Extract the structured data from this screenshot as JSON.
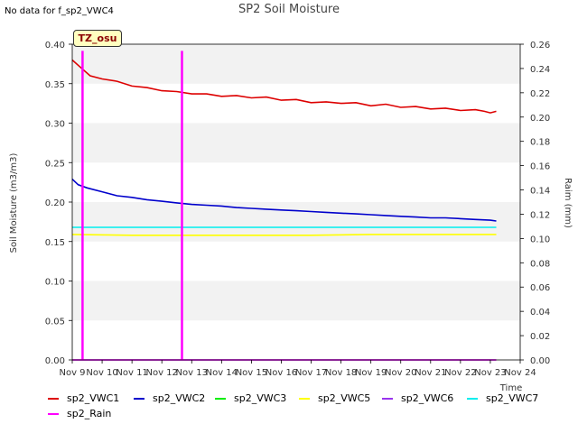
{
  "header": {
    "nodata_text": "No data for f_sp2_VWC4",
    "title": "SP2 Soil Moisture",
    "tz_label": "TZ_osu"
  },
  "chart_data": {
    "type": "line",
    "title": "SP2 Soil Moisture",
    "xlabel": "Time",
    "ylabel": "Soil Moisture (m3/m3)",
    "y2label": "Raim (mm)",
    "x_ticks": [
      "Nov 9",
      "Nov 10",
      "Nov 11",
      "Nov 12",
      "Nov 13",
      "Nov 14",
      "Nov 15",
      "Nov 16",
      "Nov 17",
      "Nov 18",
      "Nov 19",
      "Nov 20",
      "Nov 21",
      "Nov 22",
      "Nov 23",
      "Nov 24"
    ],
    "xlim": [
      "Nov 9",
      "Nov 24"
    ],
    "ylim": [
      0.0,
      0.4
    ],
    "y_ticks": [
      "0.00",
      "0.05",
      "0.10",
      "0.15",
      "0.20",
      "0.25",
      "0.30",
      "0.35",
      "0.40"
    ],
    "y2lim": [
      0.0,
      0.26
    ],
    "y2_ticks": [
      "0.00",
      "0.02",
      "0.04",
      "0.06",
      "0.08",
      "0.10",
      "0.12",
      "0.14",
      "0.16",
      "0.18",
      "0.20",
      "0.22",
      "0.24",
      "0.26"
    ],
    "grid": "horizontal bands",
    "legend_position": "bottom",
    "series": [
      {
        "name": "sp2_VWC1",
        "color": "#dd0000",
        "axis": "left",
        "x": [
          9.0,
          9.3,
          9.6,
          10.0,
          10.5,
          11.0,
          11.5,
          12.0,
          12.5,
          13.0,
          13.5,
          14.0,
          14.5,
          15.0,
          15.5,
          16.0,
          16.5,
          17.0,
          17.5,
          18.0,
          18.5,
          19.0,
          19.5,
          20.0,
          20.5,
          21.0,
          21.5,
          22.0,
          22.5,
          22.8,
          23.0,
          23.2
        ],
        "y": [
          0.38,
          0.37,
          0.36,
          0.356,
          0.353,
          0.347,
          0.345,
          0.341,
          0.34,
          0.337,
          0.337,
          0.334,
          0.335,
          0.332,
          0.333,
          0.329,
          0.33,
          0.326,
          0.327,
          0.325,
          0.326,
          0.322,
          0.324,
          0.32,
          0.321,
          0.318,
          0.319,
          0.316,
          0.317,
          0.315,
          0.313,
          0.315
        ]
      },
      {
        "name": "sp2_VWC2",
        "color": "#0000cc",
        "axis": "left",
        "x": [
          9.0,
          9.2,
          9.5,
          10.0,
          10.5,
          11.0,
          11.5,
          12.0,
          12.5,
          13.0,
          13.5,
          14.0,
          14.5,
          15.0,
          15.5,
          16.0,
          16.5,
          17.0,
          17.5,
          18.0,
          18.5,
          19.0,
          19.5,
          20.0,
          20.5,
          21.0,
          21.5,
          22.0,
          22.5,
          23.0,
          23.2
        ],
        "y": [
          0.229,
          0.222,
          0.218,
          0.213,
          0.208,
          0.206,
          0.203,
          0.201,
          0.199,
          0.197,
          0.196,
          0.195,
          0.193,
          0.192,
          0.191,
          0.19,
          0.189,
          0.188,
          0.187,
          0.186,
          0.185,
          0.184,
          0.183,
          0.182,
          0.181,
          0.18,
          0.18,
          0.179,
          0.178,
          0.177,
          0.176
        ]
      },
      {
        "name": "sp2_VWC3",
        "color": "#00ee00",
        "axis": "left",
        "x": [],
        "y": []
      },
      {
        "name": "sp2_VWC5",
        "color": "#ffff00",
        "axis": "left",
        "x": [
          9.0,
          11.0,
          13.0,
          15.0,
          17.0,
          19.0,
          21.0,
          23.2
        ],
        "y": [
          0.159,
          0.158,
          0.158,
          0.158,
          0.158,
          0.159,
          0.159,
          0.159
        ]
      },
      {
        "name": "sp2_VWC6",
        "color": "#9933ee",
        "axis": "left",
        "x": [
          9.0,
          23.2
        ],
        "y": [
          0.0,
          0.0
        ]
      },
      {
        "name": "sp2_VWC7",
        "color": "#00eeee",
        "axis": "left",
        "x": [
          9.0,
          23.2
        ],
        "y": [
          0.168,
          0.168
        ]
      },
      {
        "name": "sp2_Rain",
        "color": "#ff00ff",
        "axis": "right",
        "x": [
          9.0,
          9.33,
          9.33,
          9.36,
          9.36,
          12.66,
          12.66,
          12.69,
          12.69,
          23.2
        ],
        "y": [
          0.0,
          0.0,
          0.254,
          0.254,
          0.0,
          0.0,
          0.254,
          0.254,
          0.0,
          0.0
        ]
      }
    ]
  }
}
